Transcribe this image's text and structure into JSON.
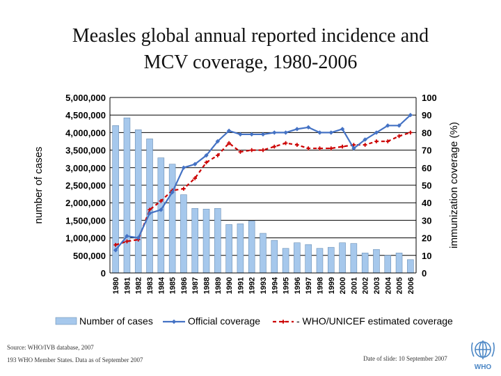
{
  "chart_data": {
    "type": "bar+line",
    "title": "Measles global annual reported incidence and",
    "title_line2": "MCV coverage, 1980-2006",
    "ylabel_left": "number of cases",
    "ylabel_right": "immunization coverage (%)",
    "ylim_left": [
      0,
      5000000
    ],
    "ylim_right": [
      0,
      100
    ],
    "yticks_left": [
      "5,000,000",
      "4,500,000",
      "4,000,000",
      "3,500,000",
      "3,000,000",
      "2,500,000",
      "2,000,000",
      "1,500,000",
      "1,000,000",
      "500,000",
      "0"
    ],
    "yticks_right": [
      "100",
      "90",
      "80",
      "70",
      "60",
      "50",
      "40",
      "30",
      "20",
      "10",
      "0"
    ],
    "grid": true,
    "categories": [
      "1980",
      "1981",
      "1982",
      "1983",
      "1984",
      "1985",
      "1986",
      "1987",
      "1988",
      "1989",
      "1990",
      "1991",
      "1992",
      "1993",
      "1994",
      "1995",
      "1996",
      "1997",
      "1998",
      "1999",
      "2000",
      "2001",
      "2002",
      "2003",
      "2004",
      "2005",
      "2006"
    ],
    "series": [
      {
        "name": "Number of cases",
        "type": "bar",
        "axis": "left",
        "color": "#a6c8ec",
        "values": [
          4200000,
          4420000,
          4080000,
          3820000,
          3280000,
          3100000,
          2230000,
          1840000,
          1820000,
          1840000,
          1380000,
          1400000,
          1480000,
          1130000,
          930000,
          700000,
          860000,
          810000,
          700000,
          730000,
          860000,
          840000,
          570000,
          670000,
          500000,
          570000,
          380000
        ]
      },
      {
        "name": "Official coverage",
        "type": "line",
        "axis": "right",
        "color": "#4472c4",
        "values": [
          13,
          21,
          20,
          34,
          36,
          46,
          60,
          62,
          67,
          75,
          81,
          79,
          79,
          79,
          80,
          80,
          82,
          83,
          80,
          80,
          82,
          71,
          76,
          80,
          84,
          84,
          90
        ]
      },
      {
        "name": "WHO/UNICEF estimated coverage",
        "type": "line",
        "axis": "right",
        "color": "#cc0000",
        "values": [
          16,
          18,
          19,
          36,
          41,
          47,
          48,
          54,
          63,
          67,
          74,
          69,
          70,
          70,
          72,
          74,
          73,
          71,
          71,
          71,
          72,
          73,
          73,
          75,
          75,
          78,
          80
        ]
      }
    ],
    "legend": [
      "Number of cases",
      "Official coverage",
      "WHO/UNICEF estimated coverage"
    ],
    "legend_position": "bottom"
  },
  "footer": {
    "source_line1": "Source: WHO/IVB database, 2007",
    "source_line2": "193 WHO Member States. Data as of September 2007",
    "slide_date": "Date of slide: 10 September 2007",
    "logo_text": "WHO"
  }
}
